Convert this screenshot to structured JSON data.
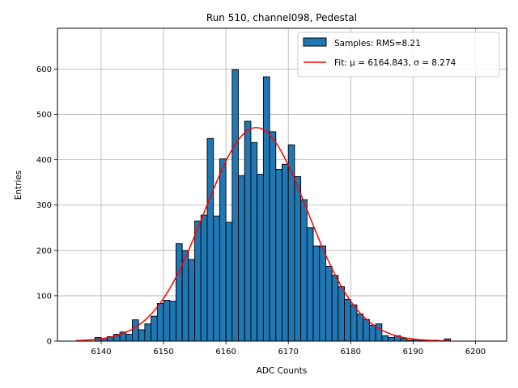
{
  "chart_data": {
    "type": "bar",
    "title": "Run 510, channel098, Pedestal",
    "xlabel": "ADC Counts",
    "ylabel": "Entries",
    "xlim": [
      6133,
      6205
    ],
    "ylim": [
      0,
      690
    ],
    "xticks": [
      6140,
      6150,
      6160,
      6170,
      6180,
      6190,
      6200
    ],
    "yticks": [
      0,
      100,
      200,
      300,
      400,
      500,
      600
    ],
    "grid": true,
    "legend_position": "top-right",
    "histogram": {
      "name": "Samples: RMS=8.21",
      "color": "#1f77b4",
      "edge_color": "#000000",
      "bins": [
        6139,
        6140,
        6141,
        6142,
        6143,
        6144,
        6145,
        6146,
        6147,
        6148,
        6149,
        6150,
        6151,
        6152,
        6153,
        6154,
        6155,
        6156,
        6157,
        6158,
        6159,
        6160,
        6161,
        6162,
        6163,
        6164,
        6165,
        6166,
        6167,
        6168,
        6169,
        6170,
        6171,
        6172,
        6173,
        6174,
        6175,
        6176,
        6177,
        6178,
        6179,
        6180,
        6181,
        6182,
        6183,
        6184,
        6185,
        6186,
        6187,
        6188,
        6189,
        6190,
        6191,
        6192,
        6193,
        6194,
        6195
      ],
      "counts": [
        8,
        6,
        10,
        15,
        20,
        15,
        47,
        25,
        38,
        55,
        83,
        90,
        88,
        215,
        200,
        180,
        265,
        278,
        447,
        276,
        402,
        262,
        599,
        365,
        485,
        438,
        368,
        583,
        462,
        379,
        390,
        433,
        363,
        312,
        250,
        210,
        210,
        165,
        145,
        120,
        92,
        80,
        60,
        48,
        35,
        38,
        12,
        8,
        12,
        6,
        2,
        3,
        1,
        1,
        2,
        0,
        5
      ],
      "bin_width": 1
    },
    "fit": {
      "name": "Fit: μ = 6164.843, σ = 8.274",
      "color": "#ff0000",
      "mu": 6164.843,
      "sigma": 8.274,
      "amplitude": 471,
      "x_range": [
        6136,
        6196
      ]
    }
  }
}
